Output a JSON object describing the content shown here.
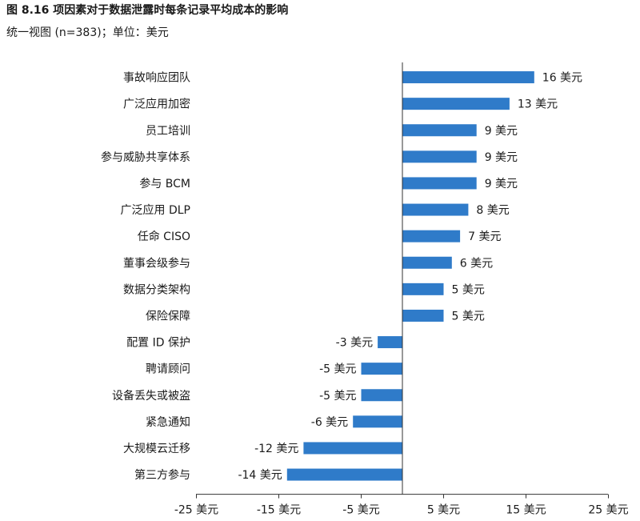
{
  "title": "图 8.16 项因素对于数据泄露时每条记录平均成本的影响",
  "subtitle": "统一视图 (n=383)；单位：美元",
  "chart_data": {
    "type": "bar",
    "orientation": "horizontal",
    "title": "图 8.16 项因素对于数据泄露时每条记录平均成本的影响",
    "subtitle": "统一视图 (n=383)；单位：美元",
    "bar_color": "#2f7bc9",
    "value_suffix": " 美元",
    "xlim": [
      -25,
      25
    ],
    "xticks": [
      -25,
      -15,
      -5,
      5,
      15,
      25
    ],
    "grid": false,
    "categories": [
      "事故响应团队",
      "广泛应用加密",
      "员工培训",
      "参与威胁共享体系",
      "参与 BCM",
      "广泛应用 DLP",
      "任命 CISO",
      "董事会级参与",
      "数据分类架构",
      "保险保障",
      "配置 ID 保护",
      "聘请顾问",
      "设备丢失或被盗",
      "紧急通知",
      "大规模云迁移",
      "第三方参与"
    ],
    "values": [
      16,
      13,
      9,
      9,
      9,
      8,
      7,
      6,
      5,
      5,
      -3,
      -5,
      -5,
      -6,
      -12,
      -14
    ],
    "value_labels": [
      "16 美元",
      "13 美元",
      "9 美元",
      "9 美元",
      "9 美元",
      "8 美元",
      "7 美元",
      "6 美元",
      "5 美元",
      "5 美元",
      "-3 美元",
      "-5 美元",
      "-5 美元",
      "-6 美元",
      "-12 美元",
      "-14 美元"
    ],
    "xtick_labels": [
      "-25 美元",
      "-15 美元",
      "-5 美元",
      "5 美元",
      "15 美元",
      "25 美元"
    ]
  }
}
